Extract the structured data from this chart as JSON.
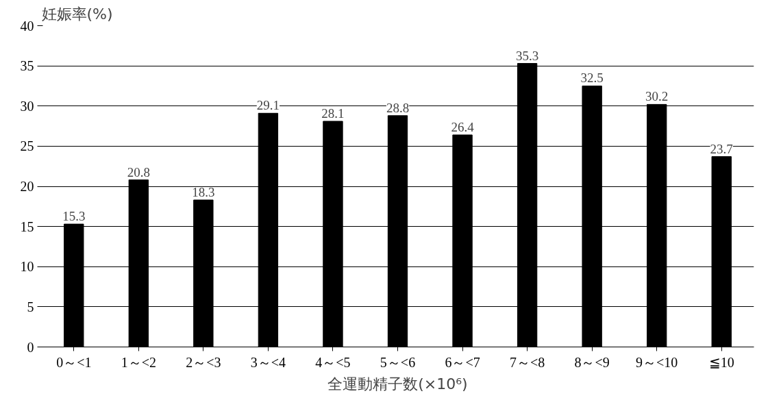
{
  "chart_data": {
    "type": "bar",
    "ylabel": "妊娠率(%)",
    "xlabel": "全運動精子数(×10⁶)",
    "categories": [
      "0～<1",
      "1～<2",
      "2～<3",
      "3～<4",
      "4～<5",
      "5～<6",
      "6～<7",
      "7～<8",
      "8～<9",
      "9～<10",
      "≦10"
    ],
    "values": [
      15.3,
      20.8,
      18.3,
      29.1,
      28.1,
      28.8,
      26.4,
      35.3,
      32.5,
      30.2,
      23.7
    ],
    "color": "#000000",
    "ylim": [
      0,
      40
    ],
    "yticks": [
      0,
      5,
      10,
      15,
      20,
      25,
      30,
      35,
      40
    ],
    "grid": "y",
    "data_labels": true
  }
}
